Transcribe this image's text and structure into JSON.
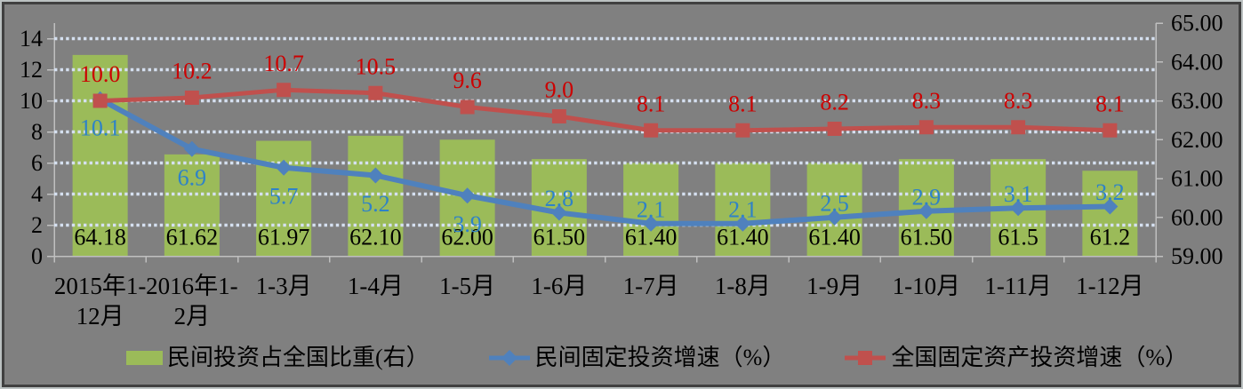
{
  "window": {
    "background": "#808080",
    "border_outer_color": "#BCC2C2",
    "border_inner_color": "#404040"
  },
  "chart_data": {
    "type": "combo",
    "title": "",
    "grid": "dotted",
    "grid_color": "#D5E0F0",
    "axis_color": "#BFBFBF",
    "text_color": "#000000",
    "legend_position": "bottom",
    "categories": [
      "2015年1-12月",
      "2016年1-2月",
      "1-3月",
      "1-4月",
      "1-5月",
      "1-6月",
      "1-7月",
      "1-8月",
      "1-9月",
      "1-10月",
      "1-11月",
      "1-12月"
    ],
    "category_lines": [
      [
        "2015年1-",
        "12月"
      ],
      [
        "2016年1-",
        "2月"
      ],
      [
        "1-3月"
      ],
      [
        "1-4月"
      ],
      [
        "1-5月"
      ],
      [
        "1-6月"
      ],
      [
        "1-7月"
      ],
      [
        "1-8月"
      ],
      [
        "1-9月"
      ],
      [
        "1-10月"
      ],
      [
        "1-11月"
      ],
      [
        "1-12月"
      ]
    ],
    "series": [
      {
        "name": "民间投资占全国比重(右）",
        "type": "bar",
        "axis": "right",
        "color": "#9BBB59",
        "label_color": "#000000",
        "values": [
          64.18,
          61.62,
          61.97,
          62.1,
          62.0,
          61.5,
          61.4,
          61.4,
          61.4,
          61.5,
          61.5,
          61.2
        ],
        "labels": [
          "64.18",
          "61.62",
          "61.97",
          "62.10",
          "62.00",
          "61.50",
          "61.40",
          "61.40",
          "61.40",
          "61.50",
          "61.5",
          "61.2"
        ]
      },
      {
        "name": "民间固定投资增速（%）",
        "type": "line",
        "marker": "diamond",
        "axis": "left",
        "color": "#4F81BD",
        "label_color": "#2E82C8",
        "label_below_first_n": 5,
        "values": [
          10.1,
          6.9,
          5.7,
          5.2,
          3.9,
          2.8,
          2.1,
          2.1,
          2.5,
          2.9,
          3.1,
          3.2
        ],
        "labels": [
          "10.1",
          "6.9",
          "5.7",
          "5.2",
          "3.9",
          "2.8",
          "2.1",
          "2.1",
          "2.5",
          "2.9",
          "3.1",
          "3.2"
        ]
      },
      {
        "name": "全国固定资产投资增速（%）",
        "type": "line",
        "marker": "square",
        "axis": "left",
        "color": "#C0504D",
        "label_color": "#CC0000",
        "values": [
          10.0,
          10.2,
          10.7,
          10.5,
          9.6,
          9.0,
          8.1,
          8.1,
          8.2,
          8.3,
          8.3,
          8.1
        ],
        "labels": [
          "10.0",
          "10.2",
          "10.7",
          "10.5",
          "9.6",
          "9.0",
          "8.1",
          "8.1",
          "8.2",
          "8.3",
          "8.3",
          "8.1"
        ]
      }
    ],
    "left_axis": {
      "min": 0,
      "max": 15,
      "values": [
        0,
        2,
        4,
        6,
        8,
        10,
        12,
        14
      ],
      "ticks": [
        "0",
        "2",
        "4",
        "6",
        "8",
        "10",
        "12",
        "14"
      ]
    },
    "right_axis": {
      "min": 59,
      "max": 65,
      "values": [
        59,
        60,
        61,
        62,
        63,
        64,
        65
      ],
      "ticks": [
        "59.00",
        "60.00",
        "61.00",
        "62.00",
        "63.00",
        "64.00",
        "65.00"
      ]
    }
  },
  "legend": {
    "items": [
      {
        "label": "民间投资占全国比重(右）"
      },
      {
        "label": "民间固定投资增速（%）"
      },
      {
        "label": "全国固定资产投资增速（%）"
      }
    ]
  }
}
